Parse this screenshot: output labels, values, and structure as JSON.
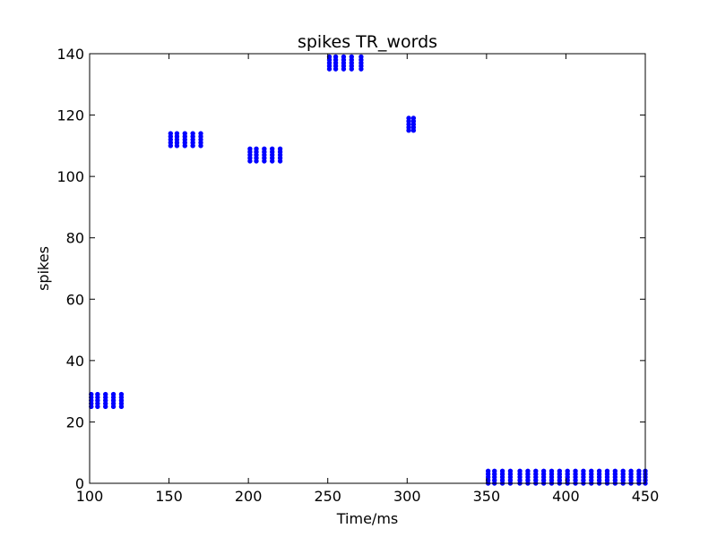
{
  "chart_data": {
    "type": "scatter",
    "title": "spikes TR_words",
    "xlabel": "Time/ms",
    "ylabel": "spikes",
    "xlim": [
      100,
      450
    ],
    "ylim": [
      0,
      140
    ],
    "xticks": [
      100,
      150,
      200,
      250,
      300,
      350,
      400,
      450
    ],
    "yticks": [
      0,
      20,
      40,
      60,
      80,
      100,
      120,
      140
    ],
    "grid": false,
    "marker_color": "#0000ff",
    "clusters": [
      {
        "times": [
          101,
          105,
          110,
          115,
          120
        ],
        "neurons": [
          25,
          26,
          27,
          28,
          29
        ]
      },
      {
        "times": [
          151,
          155,
          160,
          165,
          170
        ],
        "neurons": [
          110,
          111,
          112,
          113,
          114
        ]
      },
      {
        "times": [
          201,
          205,
          210,
          215,
          220
        ],
        "neurons": [
          105,
          106,
          107,
          108,
          109
        ]
      },
      {
        "times": [
          251,
          255,
          260,
          265,
          271
        ],
        "neurons": [
          135,
          136,
          137,
          138,
          139
        ]
      },
      {
        "times": [
          301,
          304
        ],
        "neurons": [
          115,
          116,
          117,
          118,
          119
        ]
      },
      {
        "times": [
          351,
          355,
          360,
          365,
          371,
          376,
          381,
          386,
          391,
          396,
          401,
          406,
          411,
          416,
          421,
          426,
          431,
          436,
          441,
          446,
          450
        ],
        "neurons": [
          0,
          1,
          2,
          3,
          4
        ]
      }
    ]
  }
}
